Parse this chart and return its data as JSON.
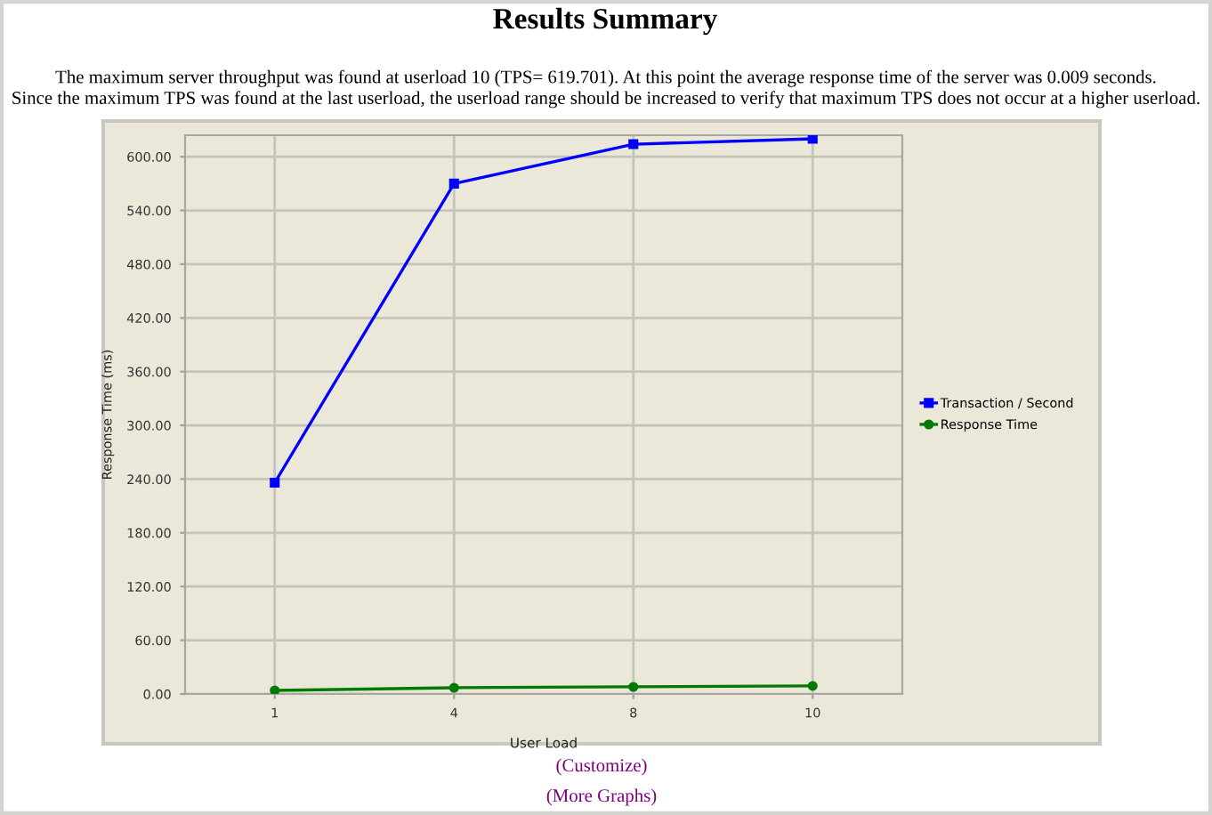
{
  "chart_data": {
    "type": "line",
    "title": "Results Summary",
    "subtitle": "The maximum server throughput was found at userload 10 (TPS= 619.701). At this point the average response time of the server was 0.009 seconds.\nSince the maximum TPS was found at the last userload, the userload range should be increased to verify that maximum TPS does not occur at a higher userload.",
    "xlabel": "User Load",
    "ylabel": "Response Time (ms)",
    "categories": [
      "1",
      "4",
      "8",
      "10"
    ],
    "series": [
      {
        "name": "Transaction / Second",
        "color": "#0000ff",
        "marker": "square",
        "values": [
          236,
          570,
          614,
          620
        ]
      },
      {
        "name": "Response Time",
        "color": "#007a00",
        "marker": "circle",
        "values": [
          4,
          7,
          8,
          9
        ]
      }
    ],
    "ylim": [
      0,
      624
    ],
    "yticks": [
      {
        "value": 0,
        "label": "0.00"
      },
      {
        "value": 60,
        "label": "60.00"
      },
      {
        "value": 120,
        "label": "120.00"
      },
      {
        "value": 180,
        "label": "180.00"
      },
      {
        "value": 240,
        "label": "240.00"
      },
      {
        "value": 300,
        "label": "300.00"
      },
      {
        "value": 360,
        "label": "360.00"
      },
      {
        "value": 420,
        "label": "420.00"
      },
      {
        "value": 480,
        "label": "480.00"
      },
      {
        "value": 540,
        "label": "540.00"
      },
      {
        "value": 600,
        "label": "600.00"
      }
    ],
    "grid": true,
    "legend": "right",
    "line_style": "solid",
    "annotations": [
      "(Customize)",
      "(More Graphs)"
    ]
  }
}
